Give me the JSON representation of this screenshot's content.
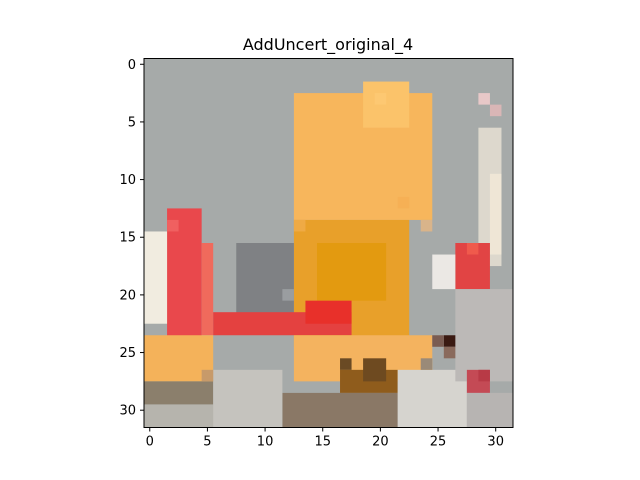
{
  "chart_data": {
    "type": "heatmap",
    "title": "AddUncert_original_4",
    "xlabel": "",
    "ylabel": "",
    "grid": false,
    "image_size": [
      32,
      32
    ],
    "xlim": [
      -0.5,
      31.5
    ],
    "ylim": [
      31.5,
      -0.5
    ],
    "x_ticks": [
      0,
      5,
      10,
      15,
      20,
      25,
      30
    ],
    "y_ticks": [
      0,
      5,
      10,
      15,
      20,
      25,
      30
    ],
    "x_tick_labels": [
      "0",
      "5",
      "10",
      "15",
      "20",
      "25",
      "30"
    ],
    "y_tick_labels": [
      "0",
      "5",
      "10",
      "15",
      "20",
      "25",
      "30"
    ],
    "background_color": "#a6aaa9",
    "regions": [
      {
        "label": "upper-wing",
        "color": "#f7b65c",
        "x0": 12.5,
        "x1": 24.5,
        "y0": 2.5,
        "y1": 13.5
      },
      {
        "label": "upper-wing-highlight",
        "color": "#fbc36a",
        "x0": 18.5,
        "x1": 22.5,
        "y0": 1.5,
        "y1": 5.5
      },
      {
        "label": "fuselage",
        "color": "#e8a02a",
        "x0": 12.5,
        "x1": 22.5,
        "y0": 13.5,
        "y1": 24.5
      },
      {
        "label": "fuselage-core",
        "color": "#e39a10",
        "x0": 14.5,
        "x1": 20.5,
        "y0": 15.5,
        "y1": 20.5
      },
      {
        "label": "dark-hangar-block",
        "color": "#7f8184",
        "x0": 7.5,
        "x1": 12.5,
        "y0": 15.5,
        "y1": 22.5
      },
      {
        "label": "tail-fin",
        "color": "#e9484c",
        "x0": 1.5,
        "x1": 4.5,
        "y0": 12.5,
        "y1": 24.5
      },
      {
        "label": "tail-fin-edge",
        "color": "#f06a5c",
        "x0": 4.5,
        "x1": 5.5,
        "y0": 15.5,
        "y1": 23.5
      },
      {
        "label": "left-edge-light",
        "color": "#f1ece0",
        "x0": -0.5,
        "x1": 1.5,
        "y0": 14.5,
        "y1": 22.5
      },
      {
        "label": "tailplane-bar",
        "color": "#e44140",
        "x0": 5.5,
        "x1": 17.5,
        "y0": 21.5,
        "y1": 23.5
      },
      {
        "label": "tailplane-red-bright",
        "color": "#e8302a",
        "x0": 13.5,
        "x1": 17.5,
        "y0": 20.5,
        "y1": 22.5
      },
      {
        "label": "lower-left-orange",
        "color": "#f4b25a",
        "x0": -0.5,
        "x1": 5.5,
        "y0": 23.5,
        "y1": 27.5
      },
      {
        "label": "lower-left-dark",
        "color": "#8b7f6c",
        "x0": -0.5,
        "x1": 5.5,
        "y0": 27.5,
        "y1": 29.5
      },
      {
        "label": "lower-left-gray",
        "color": "#b6b4ad",
        "x0": -0.5,
        "x1": 6.5,
        "y0": 29.5,
        "y1": 31.5
      },
      {
        "label": "lower-wing",
        "color": "#f4b35f",
        "x0": 12.5,
        "x1": 24.5,
        "y0": 23.5,
        "y1": 27.5
      },
      {
        "label": "lower-wing-shadow",
        "color": "#8f5c1c",
        "x0": 16.5,
        "x1": 21.5,
        "y0": 26.5,
        "y1": 28.5
      },
      {
        "label": "lower-wing-brown",
        "color": "#6e4a20",
        "x0": 18.5,
        "x1": 20.5,
        "y0": 25.5,
        "y1": 27.5
      },
      {
        "label": "ground-dark",
        "color": "#8a7866",
        "x0": 11.5,
        "x1": 21.5,
        "y0": 28.5,
        "y1": 31.5
      },
      {
        "label": "ground-light",
        "color": "#c5c3be",
        "x0": 5.5,
        "x1": 11.5,
        "y0": 26.5,
        "y1": 31.5
      },
      {
        "label": "ground-right-light",
        "color": "#d6d4cf",
        "x0": 21.5,
        "x1": 27.5,
        "y0": 26.5,
        "y1": 31.5
      },
      {
        "label": "right-pale-strip",
        "color": "#ddd8cd",
        "x0": 28.5,
        "x1": 30.5,
        "y0": 5.5,
        "y1": 17.5
      },
      {
        "label": "right-pale-post",
        "color": "#efe6d6",
        "x0": 29.5,
        "x1": 30.5,
        "y0": 9.5,
        "y1": 16.5
      },
      {
        "label": "right-red-upper",
        "color": "#e14444",
        "x0": 26.5,
        "x1": 29.5,
        "y0": 15.5,
        "y1": 19.5
      },
      {
        "label": "right-light-patch",
        "color": "#ebe8e4",
        "x0": 24.5,
        "x1": 26.5,
        "y0": 16.5,
        "y1": 19.5
      },
      {
        "label": "right-gray-lower",
        "color": "#bcb9b7",
        "x0": 26.5,
        "x1": 31.5,
        "y0": 19.5,
        "y1": 27.5
      },
      {
        "label": "right-red-lower",
        "color": "#c44a55",
        "x0": 27.5,
        "x1": 29.5,
        "y0": 26.5,
        "y1": 28.5
      },
      {
        "label": "right-lower-gray",
        "color": "#b7b4b2",
        "x0": 27.5,
        "x1": 31.5,
        "y0": 28.5,
        "y1": 31.5
      }
    ],
    "pixels": [
      {
        "x": 26,
        "y": 24,
        "color": "#3a1a12"
      },
      {
        "x": 25,
        "y": 24,
        "color": "#7a5c52"
      },
      {
        "x": 26,
        "y": 25,
        "color": "#8a6a5c"
      },
      {
        "x": 17,
        "y": 26,
        "color": "#6a4a24"
      },
      {
        "x": 24,
        "y": 26,
        "color": "#9a8a78"
      },
      {
        "x": 12,
        "y": 20,
        "color": "#9a9da0"
      },
      {
        "x": 29,
        "y": 3,
        "color": "#e8c8c8"
      },
      {
        "x": 30,
        "y": 4,
        "color": "#d9b6b6"
      },
      {
        "x": 29,
        "y": 27,
        "color": "#b83a46"
      },
      {
        "x": 28,
        "y": 16,
        "color": "#f05a4c"
      },
      {
        "x": 2,
        "y": 14,
        "color": "#f06060"
      },
      {
        "x": 20,
        "y": 3,
        "color": "#fdc872"
      },
      {
        "x": 22,
        "y": 12,
        "color": "#f6b055"
      },
      {
        "x": 13,
        "y": 14,
        "color": "#efaa45"
      },
      {
        "x": 24,
        "y": 14,
        "color": "#d9b48a"
      },
      {
        "x": 5,
        "y": 27,
        "color": "#c79a6a"
      }
    ]
  }
}
